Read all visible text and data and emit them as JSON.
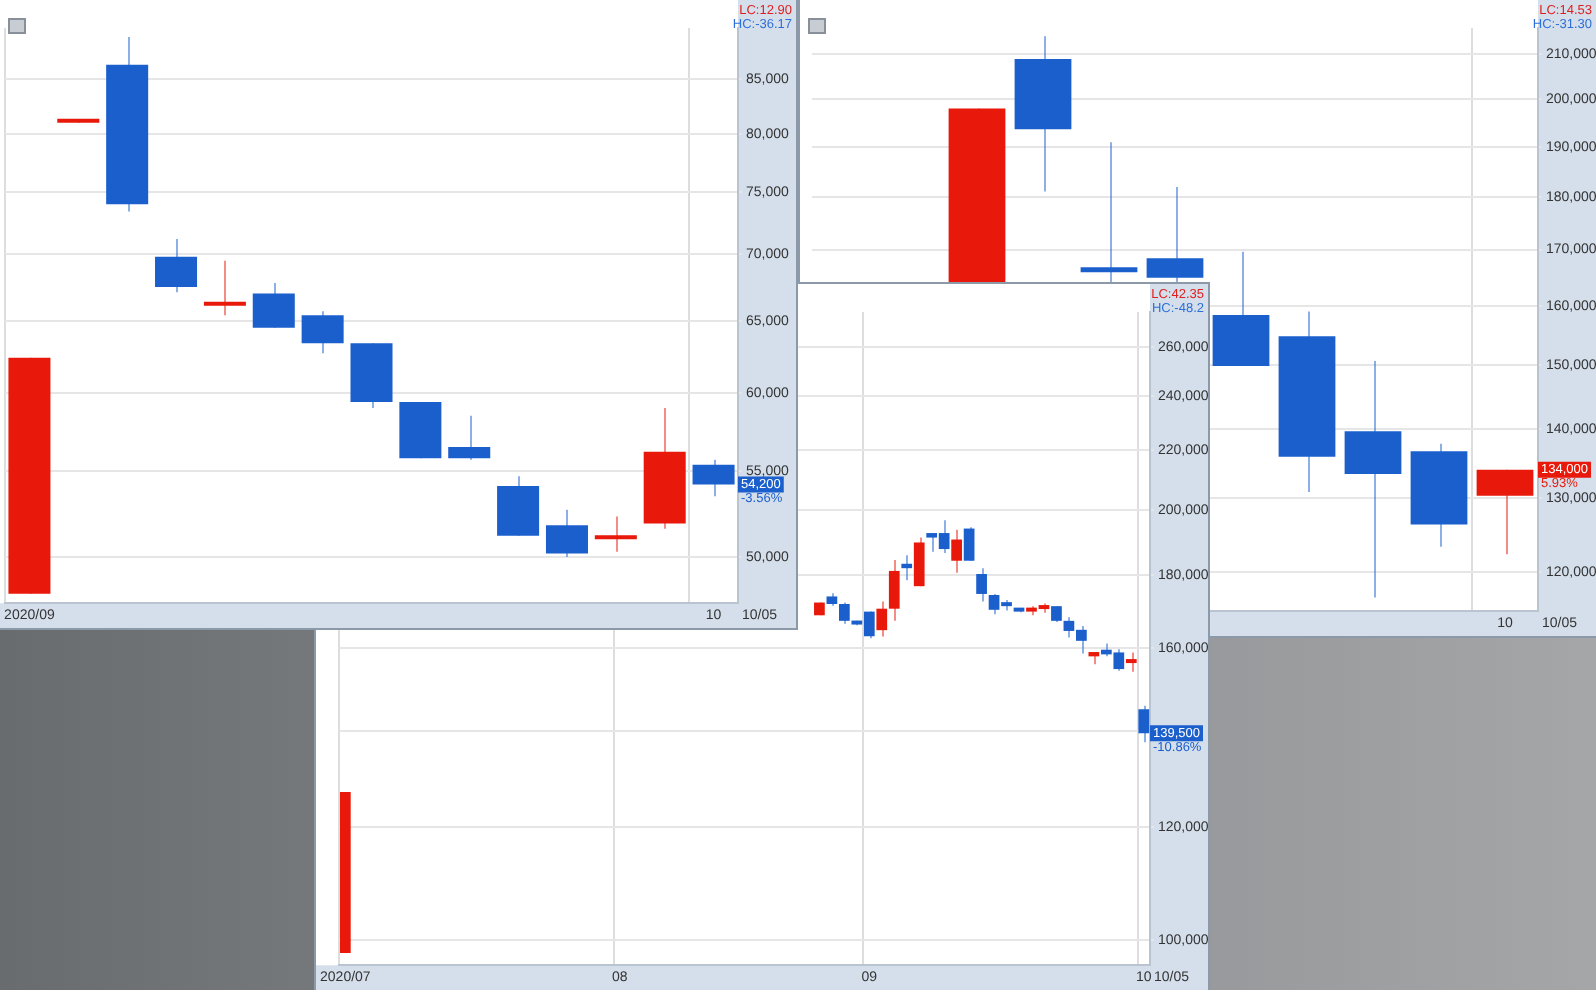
{
  "chart_data": [
    {
      "type": "candlestick",
      "log": true,
      "grid": true,
      "xlabel": "10/05",
      "categories": [
        "2020/09",
        null,
        null,
        null,
        null,
        null,
        null,
        null,
        null,
        null,
        null,
        null,
        null,
        null,
        "10"
      ],
      "ohlc": [
        [
          48000,
          62400,
          48000,
          62400
        ],
        [
          81000,
          81100,
          81000,
          81100
        ],
        [
          86400,
          89100,
          73400,
          74000
        ],
        [
          69800,
          71200,
          67100,
          67500
        ],
        [
          66100,
          69500,
          65400,
          66300
        ],
        [
          67000,
          67800,
          64500,
          64500
        ],
        [
          65400,
          65700,
          62700,
          63400
        ],
        [
          63400,
          63400,
          59000,
          59400
        ],
        [
          59400,
          59400,
          55800,
          55800
        ],
        [
          56500,
          58500,
          55700,
          55800
        ],
        [
          54100,
          54700,
          51200,
          51200
        ],
        [
          51800,
          52700,
          50000,
          50200
        ],
        [
          51000,
          52300,
          50300,
          51200
        ],
        [
          51900,
          59000,
          51600,
          56200
        ],
        [
          55400,
          55700,
          53500,
          54200
        ]
      ],
      "colors": [
        "#e8190a",
        "#e8190a",
        "#1a5fcc",
        "#1a5fcc",
        "#e8190a",
        "#1a5fcc",
        "#1a5fcc",
        "#1a5fcc",
        "#1a5fcc",
        "#1a5fcc",
        "#1a5fcc",
        "#1a5fcc",
        "#e8190a",
        "#e8190a",
        "#1a5fcc"
      ],
      "ylim": [
        47500,
        90000
      ],
      "yticks": [
        {
          "value": 50000,
          "label": "50,000"
        },
        {
          "value": 55000,
          "label": "55,000"
        },
        {
          "value": 60000,
          "label": "60,000"
        },
        {
          "value": 65000,
          "label": "65,000"
        },
        {
          "value": 70000,
          "label": "70,000"
        },
        {
          "value": 75000,
          "label": "75,000"
        },
        {
          "value": 80000,
          "label": "80,000"
        },
        {
          "value": 85000,
          "label": "85,000"
        }
      ],
      "annotations": [
        "LC:12.90",
        "HC:-36.17",
        "54,200",
        "-3.56%"
      ]
    },
    {
      "type": "candlestick",
      "log": true,
      "grid": true,
      "xlabel": "10/05",
      "categories": [
        null,
        null,
        null,
        null,
        null,
        null,
        null,
        null,
        null,
        null,
        "10"
      ],
      "ohlc": [
        null,
        null,
        [
          163500,
          198000,
          163500,
          198000
        ],
        [
          208900,
          214100,
          181000,
          193600
        ],
        [
          166800,
          190900,
          163500,
          165900
        ],
        [
          168400,
          181900,
          163500,
          164900
        ],
        [
          158400,
          169600,
          149900,
          149900
        ],
        [
          154800,
          159000,
          130800,
          135900
        ],
        [
          139700,
          150700,
          116700,
          133400
        ],
        [
          136700,
          137800,
          123300,
          126300
        ],
        [
          130300,
          134000,
          122300,
          134000
        ]
      ],
      "colors": [
        null,
        null,
        "#e8190a",
        "#1a5fcc",
        "#1a5fcc",
        "#1a5fcc",
        "#1a5fcc",
        "#1a5fcc",
        "#1a5fcc",
        "#1a5fcc",
        "#e8190a"
      ],
      "ylim": [
        115000,
        216000
      ],
      "yticks": [
        {
          "value": 120000,
          "label": "120,000"
        },
        {
          "value": 130000,
          "label": "130,000"
        },
        {
          "value": 140000,
          "label": "140,000"
        },
        {
          "value": 150000,
          "label": "150,000"
        },
        {
          "value": 160000,
          "label": "160,000"
        },
        {
          "value": 170000,
          "label": "170,000"
        },
        {
          "value": 180000,
          "label": "180,000"
        },
        {
          "value": 190000,
          "label": "190,000"
        },
        {
          "value": 200000,
          "label": "200,000"
        },
        {
          "value": 210000,
          "label": "210,000"
        }
      ],
      "annotations": [
        "LC:14.53",
        "HC:-31.30",
        "134,000",
        "5.93%"
      ]
    },
    {
      "type": "candlestick",
      "log": true,
      "grid": true,
      "xlabel": "10/05",
      "categories": [
        "2020/07",
        null,
        null,
        null,
        null,
        null,
        null,
        null,
        null,
        null,
        null,
        null,
        null,
        null,
        null,
        null,
        null,
        null,
        null,
        null,
        null,
        null,
        "08",
        null,
        null,
        null,
        null,
        null,
        null,
        null,
        null,
        null,
        null,
        null,
        null,
        null,
        null,
        null,
        null,
        null,
        null,
        null,
        "09",
        null,
        null,
        null,
        null,
        null,
        null,
        null,
        null,
        null,
        null,
        null,
        null,
        null,
        null,
        null,
        null,
        null,
        null,
        null,
        null,
        null,
        "10"
      ],
      "ohlc": [
        [
          97900,
          126900,
          97900,
          126900
        ],
        null,
        null,
        null,
        null,
        null,
        null,
        null,
        null,
        null,
        null,
        null,
        null,
        null,
        null,
        null,
        null,
        null,
        null,
        null,
        null,
        null,
        null,
        null,
        null,
        null,
        null,
        null,
        null,
        null,
        null,
        null,
        null,
        null,
        null,
        null,
        null,
        null,
        [
          168700,
          172200,
          168700,
          172200
        ],
        [
          173900,
          174800,
          171300,
          171800
        ],
        [
          171800,
          172200,
          166400,
          167200
        ],
        [
          166900,
          167200,
          166000,
          166200
        ],
        [
          169700,
          169700,
          162600,
          163100
        ],
        [
          164700,
          172500,
          163000,
          170500
        ],
        [
          170500,
          184400,
          167200,
          181200
        ],
        [
          183300,
          185800,
          178500,
          182000
        ],
        [
          176800,
          191200,
          176800,
          189700
        ],
        [
          192600,
          192600,
          186900,
          191200
        ],
        [
          192600,
          196600,
          186500,
          187700
        ],
        [
          184200,
          193600,
          180700,
          190600
        ],
        [
          194000,
          194400,
          184200,
          184200
        ],
        [
          180300,
          182000,
          172500,
          174600
        ],
        [
          174300,
          174600,
          169000,
          170200
        ],
        [
          171900,
          172900,
          170000,
          171200
        ],
        [
          170200,
          170500,
          169500,
          169700
        ],
        [
          169700,
          171200,
          168700,
          170200
        ],
        [
          170400,
          171900,
          169400,
          171200
        ],
        [
          171200,
          171200,
          166900,
          167200
        ],
        [
          167200,
          168200,
          162800,
          164500
        ],
        [
          164800,
          165800,
          158600,
          161900
        ],
        [
          157900,
          159000,
          155900,
          159000
        ],
        [
          159600,
          161200,
          157900,
          158400
        ],
        [
          158900,
          159700,
          154300,
          154700
        ],
        [
          156200,
          158900,
          154000,
          156600
        ],
        [
          145000,
          145800,
          137500,
          139500
        ]
      ],
      "colors": [
        "#e8190a",
        null,
        null,
        null,
        null,
        null,
        null,
        null,
        null,
        null,
        null,
        null,
        null,
        null,
        null,
        null,
        null,
        null,
        null,
        null,
        null,
        null,
        null,
        null,
        null,
        null,
        null,
        null,
        null,
        null,
        null,
        null,
        null,
        null,
        null,
        null,
        null,
        null,
        "#e8190a",
        "#1a5fcc",
        "#1a5fcc",
        "#1a5fcc",
        "#1a5fcc",
        "#e8190a",
        "#e8190a",
        "#1a5fcc",
        "#e8190a",
        "#1a5fcc",
        "#1a5fcc",
        "#e8190a",
        "#1a5fcc",
        "#1a5fcc",
        "#1a5fcc",
        "#1a5fcc",
        "#1a5fcc",
        "#e8190a",
        "#e8190a",
        "#1a5fcc",
        "#1a5fcc",
        "#1a5fcc",
        "#e8190a",
        "#1a5fcc",
        "#1a5fcc",
        "#e8190a",
        "#1a5fcc"
      ],
      "ylim": [
        96000,
        275000
      ],
      "yticks": [
        {
          "value": 100000,
          "label": "100,000"
        },
        {
          "value": 120000,
          "label": "120,000"
        },
        {
          "value": 140000,
          "label": null
        },
        {
          "value": 160000,
          "label": "160,000"
        },
        {
          "value": 180000,
          "label": "180,000"
        },
        {
          "value": 200000,
          "label": "200,000"
        },
        {
          "value": 220000,
          "label": "220,000"
        },
        {
          "value": 240000,
          "label": "240,000"
        },
        {
          "value": 260000,
          "label": "260,000"
        }
      ],
      "annotations": [
        "LC:42.35",
        "HC:-48.2",
        "139,500",
        "-10.86%"
      ]
    }
  ]
}
